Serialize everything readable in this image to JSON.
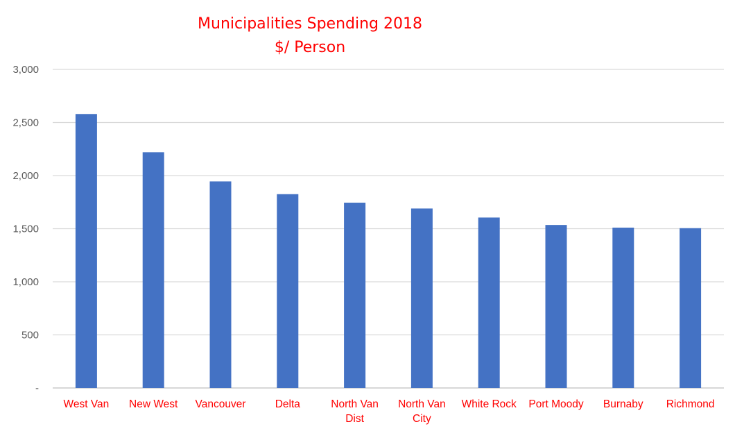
{
  "chart_data": {
    "type": "bar",
    "title": "Municipalities Spending 2018",
    "subtitle": "$/ Person",
    "xlabel": "",
    "ylabel": "",
    "categories": [
      "West Van",
      "New West",
      "Vancouver",
      "Delta",
      "North Van Dist",
      "North Van City",
      "White Rock",
      "Port Moody",
      "Burnaby",
      "Richmond"
    ],
    "category_lines": [
      [
        "West Van"
      ],
      [
        "New West"
      ],
      [
        "Vancouver"
      ],
      [
        "Delta"
      ],
      [
        "North Van",
        "Dist"
      ],
      [
        "North Van",
        "City"
      ],
      [
        "White Rock"
      ],
      [
        "Port Moody"
      ],
      [
        "Burnaby"
      ],
      [
        "Richmond"
      ]
    ],
    "values": [
      2580,
      2220,
      1945,
      1825,
      1745,
      1690,
      1605,
      1535,
      1510,
      1505
    ],
    "ylim": [
      0,
      3000
    ],
    "yticks": [
      0,
      500,
      1000,
      1500,
      2000,
      2500,
      3000
    ],
    "ytick_labels": [
      "-",
      "500",
      "1,000",
      "1,500",
      "2,000",
      "2,500",
      "3,000"
    ],
    "grid": true,
    "legend": "none"
  },
  "colors": {
    "bar": "#4472C4",
    "title": "#FF0000",
    "category_label": "#FF0000",
    "tick_label": "#595959",
    "gridline": "#D9D9D9",
    "axis_line": "#BFBFBF"
  }
}
